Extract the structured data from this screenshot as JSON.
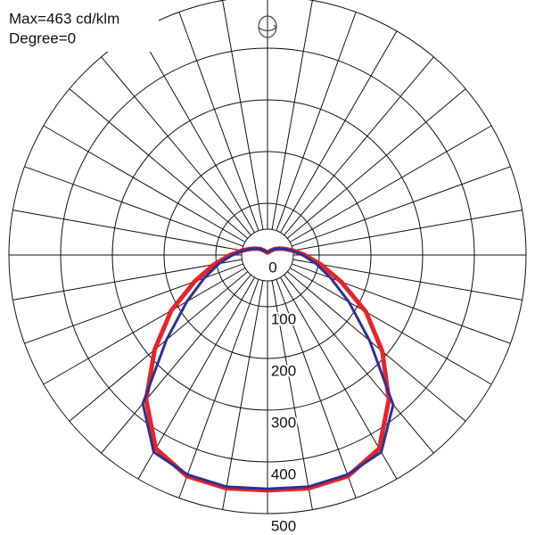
{
  "chart_data": {
    "type": "polar",
    "annotations": [
      "Max=463 cd/klm",
      "Degree=0"
    ],
    "x": [
      -180,
      -170,
      -160,
      -150,
      -140,
      -130,
      -120,
      -110,
      -100,
      -90,
      -80,
      -70,
      -60,
      -50,
      -40,
      -30,
      -20,
      -10,
      0,
      10,
      20,
      30,
      40,
      50,
      60,
      70,
      80,
      90,
      100,
      110,
      120,
      130,
      140,
      150,
      160,
      170,
      180
    ],
    "series": [
      {
        "color": "#e8232a",
        "values": [
          5,
          5,
          6,
          8,
          12,
          18,
          25,
          35,
          50,
          72,
          105,
          150,
          215,
          285,
          365,
          432,
          455,
          458,
          455,
          458,
          455,
          432,
          365,
          290,
          220,
          152,
          105,
          72,
          50,
          35,
          25,
          18,
          12,
          8,
          6,
          5,
          5
        ]
      },
      {
        "color": "#2e3192",
        "values": [
          6,
          6,
          7,
          9,
          12,
          18,
          25,
          35,
          48,
          68,
          95,
          130,
          180,
          255,
          375,
          440,
          452,
          455,
          452,
          455,
          452,
          440,
          378,
          258,
          182,
          130,
          95,
          68,
          48,
          35,
          25,
          18,
          12,
          9,
          7,
          6,
          6
        ]
      }
    ],
    "rlim": [
      0,
      500
    ],
    "rticks": [
      0,
      100,
      200,
      300,
      400,
      500
    ],
    "grid": true
  }
}
